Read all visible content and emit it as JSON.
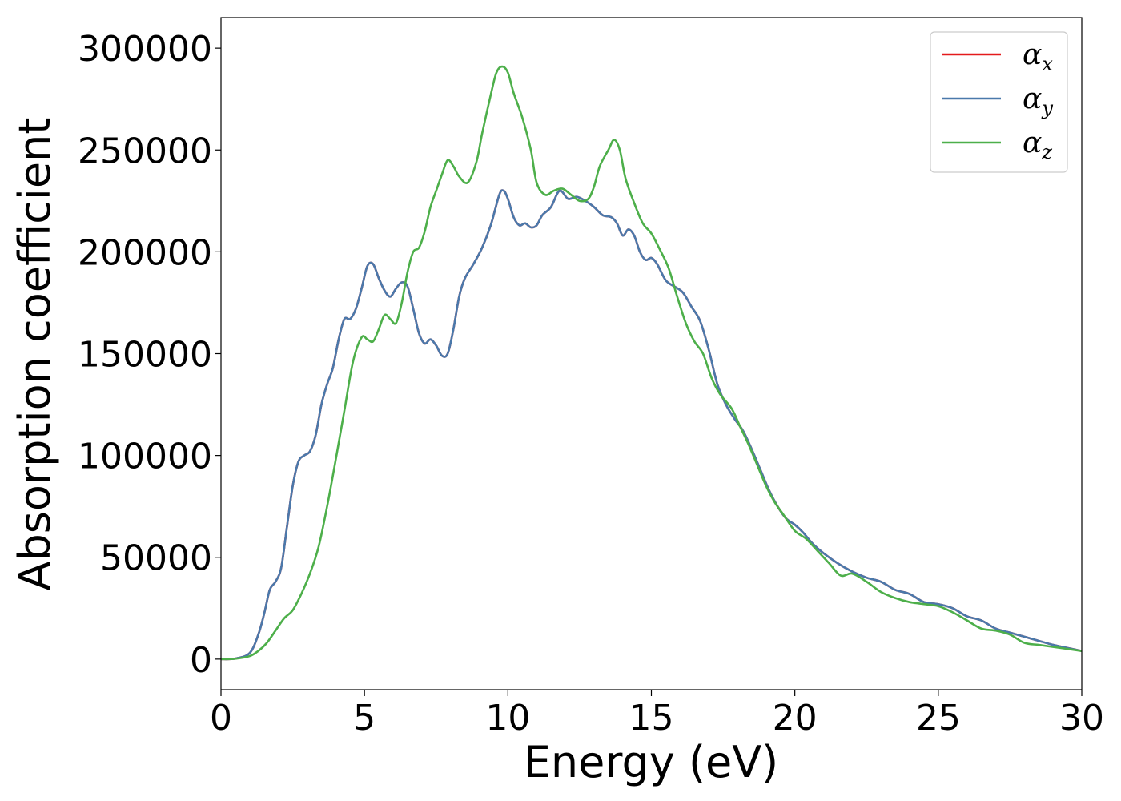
{
  "chart_data": {
    "type": "line",
    "title": "",
    "xlabel": "Energy (eV)",
    "ylabel": "Absorption coefficient",
    "xlim": [
      0,
      30
    ],
    "ylim": [
      -15000,
      315000
    ],
    "x_ticks": [
      0,
      5,
      10,
      15,
      20,
      25,
      30
    ],
    "x_tick_labels": [
      "0",
      "5",
      "10",
      "15",
      "20",
      "25",
      "30"
    ],
    "y_ticks": [
      0,
      50000,
      100000,
      150000,
      200000,
      250000,
      300000
    ],
    "y_tick_labels": [
      "0",
      "50000",
      "100000",
      "150000",
      "200000",
      "250000",
      "300000"
    ],
    "grid": false,
    "legend_position": "top-right",
    "series": [
      {
        "name": "αx",
        "legend_base": "α",
        "legend_sub": "x",
        "color": "#e41a1c",
        "points": [
          [
            0,
            0
          ],
          [
            0.5,
            300
          ],
          [
            1,
            3000
          ],
          [
            1.3,
            12000
          ],
          [
            1.5,
            22000
          ],
          [
            1.7,
            34000
          ],
          [
            1.9,
            38000
          ],
          [
            2.1,
            45000
          ],
          [
            2.3,
            65000
          ],
          [
            2.5,
            85000
          ],
          [
            2.7,
            97000
          ],
          [
            2.9,
            100000
          ],
          [
            3.1,
            102000
          ],
          [
            3.3,
            110000
          ],
          [
            3.5,
            125000
          ],
          [
            3.7,
            135000
          ],
          [
            3.9,
            143000
          ],
          [
            4.1,
            157000
          ],
          [
            4.3,
            167000
          ],
          [
            4.5,
            167000
          ],
          [
            4.7,
            172000
          ],
          [
            4.9,
            182000
          ],
          [
            5.1,
            193000
          ],
          [
            5.3,
            194000
          ],
          [
            5.5,
            187000
          ],
          [
            5.7,
            181000
          ],
          [
            5.9,
            178000
          ],
          [
            6.1,
            182000
          ],
          [
            6.3,
            185000
          ],
          [
            6.5,
            183000
          ],
          [
            6.7,
            172000
          ],
          [
            6.9,
            160000
          ],
          [
            7.1,
            155000
          ],
          [
            7.3,
            157000
          ],
          [
            7.5,
            154000
          ],
          [
            7.7,
            149000
          ],
          [
            7.9,
            150000
          ],
          [
            8.1,
            162000
          ],
          [
            8.3,
            178000
          ],
          [
            8.5,
            187000
          ],
          [
            8.8,
            194000
          ],
          [
            9.1,
            202000
          ],
          [
            9.4,
            213000
          ],
          [
            9.7,
            228000
          ],
          [
            9.85,
            230000
          ],
          [
            10.0,
            226000
          ],
          [
            10.2,
            217000
          ],
          [
            10.4,
            213000
          ],
          [
            10.6,
            214000
          ],
          [
            10.8,
            212000
          ],
          [
            11.0,
            213000
          ],
          [
            11.2,
            218000
          ],
          [
            11.5,
            222000
          ],
          [
            11.8,
            230000
          ],
          [
            12.1,
            226000
          ],
          [
            12.4,
            227000
          ],
          [
            12.7,
            225000
          ],
          [
            13.0,
            222000
          ],
          [
            13.3,
            218000
          ],
          [
            13.6,
            217000
          ],
          [
            13.8,
            214000
          ],
          [
            14.0,
            208000
          ],
          [
            14.2,
            211000
          ],
          [
            14.4,
            208000
          ],
          [
            14.6,
            200000
          ],
          [
            14.8,
            196000
          ],
          [
            15.0,
            197000
          ],
          [
            15.2,
            194000
          ],
          [
            15.5,
            186000
          ],
          [
            15.8,
            183000
          ],
          [
            16.1,
            180000
          ],
          [
            16.4,
            173000
          ],
          [
            16.7,
            166000
          ],
          [
            17.0,
            152000
          ],
          [
            17.3,
            135000
          ],
          [
            17.6,
            125000
          ],
          [
            17.9,
            118000
          ],
          [
            18.2,
            112000
          ],
          [
            18.5,
            103000
          ],
          [
            18.8,
            93000
          ],
          [
            19.1,
            83000
          ],
          [
            19.4,
            75000
          ],
          [
            19.7,
            69000
          ],
          [
            20.0,
            66000
          ],
          [
            20.3,
            62000
          ],
          [
            20.6,
            57000
          ],
          [
            21.0,
            52000
          ],
          [
            21.5,
            47000
          ],
          [
            22.0,
            43000
          ],
          [
            22.5,
            40000
          ],
          [
            23.0,
            38000
          ],
          [
            23.5,
            34000
          ],
          [
            24.0,
            32000
          ],
          [
            24.5,
            28000
          ],
          [
            25.0,
            27000
          ],
          [
            25.5,
            25000
          ],
          [
            26.0,
            21000
          ],
          [
            26.5,
            19000
          ],
          [
            27.0,
            15000
          ],
          [
            27.5,
            13000
          ],
          [
            28.0,
            11000
          ],
          [
            28.5,
            9000
          ],
          [
            29.0,
            7000
          ],
          [
            29.5,
            5500
          ],
          [
            30,
            4000
          ]
        ]
      },
      {
        "name": "αy",
        "legend_base": "α",
        "legend_sub": "y",
        "color": "#4a79ab",
        "points": [
          [
            0,
            0
          ],
          [
            0.5,
            300
          ],
          [
            1,
            3000
          ],
          [
            1.3,
            12000
          ],
          [
            1.5,
            22000
          ],
          [
            1.7,
            34000
          ],
          [
            1.9,
            38000
          ],
          [
            2.1,
            45000
          ],
          [
            2.3,
            65000
          ],
          [
            2.5,
            85000
          ],
          [
            2.7,
            97000
          ],
          [
            2.9,
            100000
          ],
          [
            3.1,
            102000
          ],
          [
            3.3,
            110000
          ],
          [
            3.5,
            125000
          ],
          [
            3.7,
            135000
          ],
          [
            3.9,
            143000
          ],
          [
            4.1,
            157000
          ],
          [
            4.3,
            167000
          ],
          [
            4.5,
            167000
          ],
          [
            4.7,
            172000
          ],
          [
            4.9,
            182000
          ],
          [
            5.1,
            193000
          ],
          [
            5.3,
            194000
          ],
          [
            5.5,
            187000
          ],
          [
            5.7,
            181000
          ],
          [
            5.9,
            178000
          ],
          [
            6.1,
            182000
          ],
          [
            6.3,
            185000
          ],
          [
            6.5,
            183000
          ],
          [
            6.7,
            172000
          ],
          [
            6.9,
            160000
          ],
          [
            7.1,
            155000
          ],
          [
            7.3,
            157000
          ],
          [
            7.5,
            154000
          ],
          [
            7.7,
            149000
          ],
          [
            7.9,
            150000
          ],
          [
            8.1,
            162000
          ],
          [
            8.3,
            178000
          ],
          [
            8.5,
            187000
          ],
          [
            8.8,
            194000
          ],
          [
            9.1,
            202000
          ],
          [
            9.4,
            213000
          ],
          [
            9.7,
            228000
          ],
          [
            9.85,
            230000
          ],
          [
            10.0,
            226000
          ],
          [
            10.2,
            217000
          ],
          [
            10.4,
            213000
          ],
          [
            10.6,
            214000
          ],
          [
            10.8,
            212000
          ],
          [
            11.0,
            213000
          ],
          [
            11.2,
            218000
          ],
          [
            11.5,
            222000
          ],
          [
            11.8,
            230000
          ],
          [
            12.1,
            226000
          ],
          [
            12.4,
            227000
          ],
          [
            12.7,
            225000
          ],
          [
            13.0,
            222000
          ],
          [
            13.3,
            218000
          ],
          [
            13.6,
            217000
          ],
          [
            13.8,
            214000
          ],
          [
            14.0,
            208000
          ],
          [
            14.2,
            211000
          ],
          [
            14.4,
            208000
          ],
          [
            14.6,
            200000
          ],
          [
            14.8,
            196000
          ],
          [
            15.0,
            197000
          ],
          [
            15.2,
            194000
          ],
          [
            15.5,
            186000
          ],
          [
            15.8,
            183000
          ],
          [
            16.1,
            180000
          ],
          [
            16.4,
            173000
          ],
          [
            16.7,
            166000
          ],
          [
            17.0,
            152000
          ],
          [
            17.3,
            135000
          ],
          [
            17.6,
            125000
          ],
          [
            17.9,
            118000
          ],
          [
            18.2,
            112000
          ],
          [
            18.5,
            103000
          ],
          [
            18.8,
            93000
          ],
          [
            19.1,
            83000
          ],
          [
            19.4,
            75000
          ],
          [
            19.7,
            69000
          ],
          [
            20.0,
            66000
          ],
          [
            20.3,
            62000
          ],
          [
            20.6,
            57000
          ],
          [
            21.0,
            52000
          ],
          [
            21.5,
            47000
          ],
          [
            22.0,
            43000
          ],
          [
            22.5,
            40000
          ],
          [
            23.0,
            38000
          ],
          [
            23.5,
            34000
          ],
          [
            24.0,
            32000
          ],
          [
            24.5,
            28000
          ],
          [
            25.0,
            27000
          ],
          [
            25.5,
            25000
          ],
          [
            26.0,
            21000
          ],
          [
            26.5,
            19000
          ],
          [
            27.0,
            15000
          ],
          [
            27.5,
            13000
          ],
          [
            28.0,
            11000
          ],
          [
            28.5,
            9000
          ],
          [
            29.0,
            7000
          ],
          [
            29.5,
            5500
          ],
          [
            30,
            4000
          ]
        ]
      },
      {
        "name": "αz",
        "legend_base": "α",
        "legend_sub": "z",
        "color": "#4daf4a",
        "points": [
          [
            0,
            0
          ],
          [
            0.5,
            200
          ],
          [
            1,
            1500
          ],
          [
            1.3,
            4000
          ],
          [
            1.6,
            8000
          ],
          [
            1.9,
            14000
          ],
          [
            2.2,
            20000
          ],
          [
            2.5,
            24000
          ],
          [
            2.8,
            32000
          ],
          [
            3.1,
            42000
          ],
          [
            3.4,
            55000
          ],
          [
            3.7,
            75000
          ],
          [
            4.0,
            98000
          ],
          [
            4.3,
            122000
          ],
          [
            4.6,
            146000
          ],
          [
            4.9,
            158000
          ],
          [
            5.1,
            157000
          ],
          [
            5.3,
            156000
          ],
          [
            5.5,
            162000
          ],
          [
            5.7,
            169000
          ],
          [
            5.9,
            167000
          ],
          [
            6.1,
            165000
          ],
          [
            6.3,
            175000
          ],
          [
            6.5,
            190000
          ],
          [
            6.7,
            200000
          ],
          [
            6.9,
            202000
          ],
          [
            7.1,
            210000
          ],
          [
            7.3,
            222000
          ],
          [
            7.5,
            230000
          ],
          [
            7.7,
            238000
          ],
          [
            7.9,
            245000
          ],
          [
            8.1,
            242000
          ],
          [
            8.3,
            237000
          ],
          [
            8.6,
            234000
          ],
          [
            8.9,
            244000
          ],
          [
            9.1,
            258000
          ],
          [
            9.4,
            277000
          ],
          [
            9.6,
            288000
          ],
          [
            9.8,
            291000
          ],
          [
            10.0,
            288000
          ],
          [
            10.2,
            278000
          ],
          [
            10.5,
            266000
          ],
          [
            10.8,
            250000
          ],
          [
            11.0,
            234000
          ],
          [
            11.3,
            228000
          ],
          [
            11.6,
            230000
          ],
          [
            11.9,
            231000
          ],
          [
            12.2,
            228000
          ],
          [
            12.5,
            225000
          ],
          [
            12.8,
            226000
          ],
          [
            13.0,
            232000
          ],
          [
            13.2,
            242000
          ],
          [
            13.5,
            250000
          ],
          [
            13.7,
            255000
          ],
          [
            13.9,
            250000
          ],
          [
            14.1,
            236000
          ],
          [
            14.4,
            224000
          ],
          [
            14.7,
            214000
          ],
          [
            15.0,
            209000
          ],
          [
            15.3,
            201000
          ],
          [
            15.6,
            192000
          ],
          [
            15.9,
            178000
          ],
          [
            16.2,
            165000
          ],
          [
            16.5,
            156000
          ],
          [
            16.8,
            150000
          ],
          [
            17.1,
            138000
          ],
          [
            17.4,
            130000
          ],
          [
            17.8,
            123000
          ],
          [
            18.1,
            114000
          ],
          [
            18.4,
            105000
          ],
          [
            18.7,
            95000
          ],
          [
            19.0,
            85000
          ],
          [
            19.3,
            77000
          ],
          [
            19.6,
            71000
          ],
          [
            20.0,
            63000
          ],
          [
            20.4,
            59000
          ],
          [
            20.8,
            53000
          ],
          [
            21.2,
            47000
          ],
          [
            21.6,
            41000
          ],
          [
            22.0,
            42000
          ],
          [
            22.5,
            38000
          ],
          [
            23.0,
            33000
          ],
          [
            23.5,
            30000
          ],
          [
            24.0,
            28000
          ],
          [
            24.5,
            27000
          ],
          [
            25.0,
            26000
          ],
          [
            25.5,
            23000
          ],
          [
            26.0,
            19000
          ],
          [
            26.5,
            15000
          ],
          [
            27.0,
            14000
          ],
          [
            27.5,
            12000
          ],
          [
            28.0,
            8000
          ],
          [
            28.5,
            7000
          ],
          [
            29.0,
            6000
          ],
          [
            29.5,
            5000
          ],
          [
            30,
            4000
          ]
        ]
      }
    ]
  }
}
